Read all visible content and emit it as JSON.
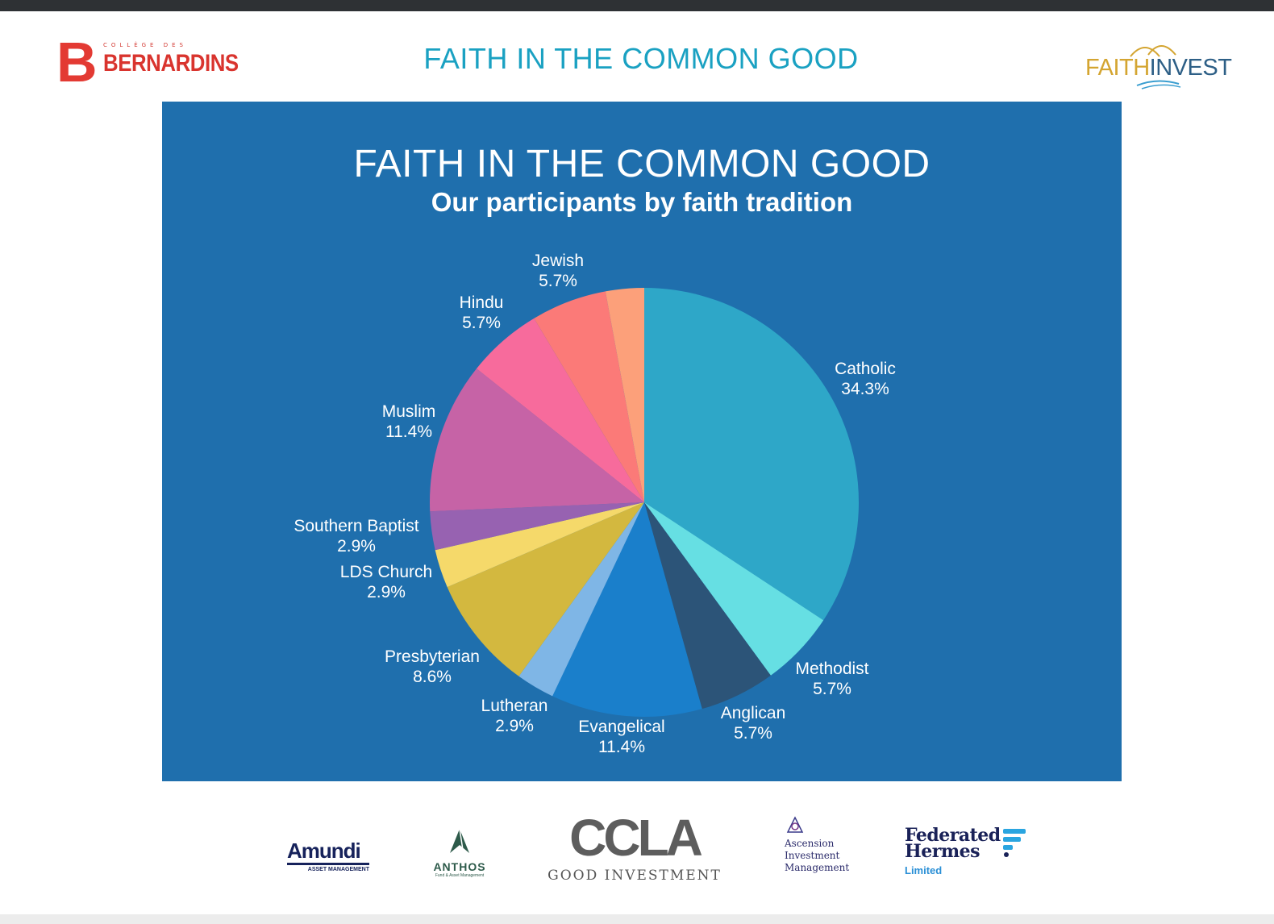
{
  "header": {
    "title": "FAITH IN THE COMMON GOOD",
    "logo_left_small": "COLLÈGE DES",
    "logo_left_big": "BERNARDINS",
    "logo_right_part1": "FAITH",
    "logo_right_part2": "INVEST"
  },
  "chart_data": {
    "type": "pie",
    "title": "FAITH IN THE COMMON GOOD",
    "subtitle": "Our participants by faith tradition",
    "unit": "%",
    "slices": [
      {
        "label": "Catholic",
        "value": 34.3,
        "display": "34.3%",
        "color": "#2ea7c8"
      },
      {
        "label": "Methodist",
        "value": 5.7,
        "display": "5.7%",
        "color": "#66dfe3"
      },
      {
        "label": "Anglican",
        "value": 5.7,
        "display": "5.7%",
        "color": "#2c5478"
      },
      {
        "label": "Evangelical",
        "value": 11.4,
        "display": "11.4%",
        "color": "#1a7fcb"
      },
      {
        "label": "Lutheran",
        "value": 2.9,
        "display": "2.9%",
        "color": "#7fb6e6"
      },
      {
        "label": "Presbyterian",
        "value": 8.6,
        "display": "8.6%",
        "color": "#d3b83f"
      },
      {
        "label": "LDS Church",
        "value": 2.9,
        "display": "2.9%",
        "color": "#f5d96a"
      },
      {
        "label": "Southern Baptist",
        "value": 2.9,
        "display": "2.9%",
        "color": "#9762b1"
      },
      {
        "label": "Muslim",
        "value": 11.4,
        "display": "11.4%",
        "color": "#c663a6"
      },
      {
        "label": "Hindu",
        "value": 5.7,
        "display": "5.7%",
        "color": "#f76b9c"
      },
      {
        "label": "Jewish",
        "value": 5.7,
        "display": "5.7%",
        "color": "#fb7a78"
      },
      {
        "label": "",
        "value": 2.9,
        "display": "",
        "color": "#fca07a"
      }
    ],
    "start_angle": "12 o'clock",
    "direction": "clockwise"
  },
  "sponsors": {
    "amundi": {
      "name": "Amundi",
      "sub": "ASSET MANAGEMENT"
    },
    "anthos": {
      "name": "ANTHOS",
      "sub": "Fund & Asset Management"
    },
    "ccla": {
      "name": "CCLA",
      "sub": "GOOD INVESTMENT"
    },
    "ascension": {
      "line1": "Ascension",
      "line2": "Investment",
      "line3": "Management"
    },
    "federated": {
      "line1": "Federated",
      "line2": "Hermes",
      "sub": "Limited"
    }
  }
}
